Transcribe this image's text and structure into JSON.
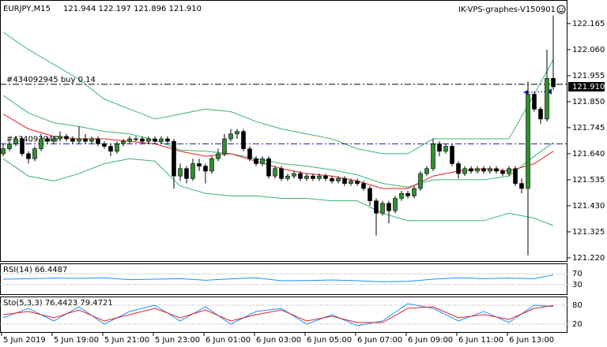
{
  "chart_data": {
    "type": "candlestick",
    "symbol": "EURJPY,M15",
    "quote": "121.944 122.197 121.896 121.910",
    "watermark": "IK-VPS-graphes-V150901",
    "colors": {
      "up": "#2f8f2f",
      "down": "#000000",
      "wick": "#000000"
    },
    "ylim": [
      121.204,
      122.26
    ],
    "yticks": [
      122.165,
      {
        "value": 122.06,
        "label": "122.060"
      },
      121.955,
      {
        "value": 121.85,
        "label": "121.850"
      },
      121.745,
      {
        "value": 121.64,
        "label": "121.640"
      },
      121.535,
      {
        "value": 121.43,
        "label": "121.430"
      },
      121.325,
      {
        "value": 121.22,
        "label": "121.220"
      }
    ],
    "xticks": [
      {
        "value": 0,
        "label": "5 Jun 2019"
      },
      {
        "value": 8,
        "label": "5 Jun 19:00"
      },
      {
        "value": 16,
        "label": "5 Jun 21:00"
      },
      {
        "value": 24,
        "label": "5 Jun 23:00"
      },
      {
        "value": 32,
        "label": "6 Jun 01:00"
      },
      {
        "value": 40,
        "label": "6 Jun 03:00"
      },
      {
        "value": 48,
        "label": "6 Jun 05:00"
      },
      {
        "value": 56,
        "label": "6 Jun 07:00"
      },
      {
        "value": 64,
        "label": "6 Jun 09:00"
      },
      {
        "value": 72,
        "label": "6 Jun 11:00"
      },
      {
        "value": 80,
        "label": "6 Jun 13:00"
      }
    ],
    "last": {
      "value": 121.91,
      "label": "121.910"
    },
    "orders": [
      {
        "label": "#434092945 buy 0.14",
        "price": 121.92,
        "color": "#000000"
      },
      {
        "label": "#434092945",
        "price": 121.68,
        "color": "#1a1aa0"
      }
    ],
    "ohlc": [
      [
        121.64,
        121.68,
        121.63,
        121.66
      ],
      [
        121.66,
        121.69,
        121.65,
        121.68
      ],
      [
        121.68,
        121.71,
        121.67,
        121.7
      ],
      [
        121.7,
        121.71,
        121.63,
        121.64
      ],
      [
        121.64,
        121.65,
        121.6,
        121.62
      ],
      [
        121.62,
        121.67,
        121.61,
        121.66
      ],
      [
        121.66,
        121.72,
        121.65,
        121.7
      ],
      [
        121.7,
        121.71,
        121.68,
        121.69
      ],
      [
        121.69,
        121.71,
        121.68,
        121.7
      ],
      [
        121.7,
        121.73,
        121.69,
        121.71
      ],
      [
        121.71,
        121.72,
        121.69,
        121.7
      ],
      [
        121.7,
        121.71,
        121.68,
        121.69
      ],
      [
        121.69,
        121.75,
        121.68,
        121.7
      ],
      [
        121.7,
        121.72,
        121.68,
        121.69
      ],
      [
        121.69,
        121.71,
        121.68,
        121.7
      ],
      [
        121.7,
        121.71,
        121.67,
        121.68
      ],
      [
        121.68,
        121.69,
        121.66,
        121.67
      ],
      [
        121.67,
        121.68,
        121.63,
        121.65
      ],
      [
        121.65,
        121.69,
        121.64,
        121.68
      ],
      [
        121.68,
        121.7,
        121.67,
        121.69
      ],
      [
        121.69,
        121.71,
        121.68,
        121.7
      ],
      [
        121.7,
        121.71,
        121.69,
        121.7
      ],
      [
        121.7,
        121.71,
        121.68,
        121.69
      ],
      [
        121.69,
        121.71,
        121.68,
        121.7
      ],
      [
        121.7,
        121.71,
        121.68,
        121.69
      ],
      [
        121.69,
        121.71,
        121.68,
        121.7
      ],
      [
        121.7,
        121.71,
        121.68,
        121.69
      ],
      [
        121.69,
        121.7,
        121.5,
        121.55
      ],
      [
        121.55,
        121.6,
        121.53,
        121.58
      ],
      [
        121.58,
        121.59,
        121.52,
        121.54
      ],
      [
        121.54,
        121.62,
        121.53,
        121.6
      ],
      [
        121.6,
        121.62,
        121.57,
        121.59
      ],
      [
        121.59,
        121.6,
        121.52,
        121.57
      ],
      [
        121.57,
        121.63,
        121.56,
        121.62
      ],
      [
        121.62,
        121.66,
        121.61,
        121.64
      ],
      [
        121.64,
        121.72,
        121.63,
        121.7
      ],
      [
        121.7,
        121.74,
        121.69,
        121.72
      ],
      [
        121.72,
        121.74,
        121.7,
        121.73
      ],
      [
        121.73,
        121.74,
        121.65,
        121.66
      ],
      [
        121.66,
        121.67,
        121.61,
        121.62
      ],
      [
        121.62,
        121.63,
        121.59,
        121.6
      ],
      [
        121.6,
        121.63,
        121.59,
        121.62
      ],
      [
        121.62,
        121.63,
        121.54,
        121.55
      ],
      [
        121.55,
        121.59,
        121.54,
        121.58
      ],
      [
        121.58,
        121.59,
        121.53,
        121.54
      ],
      [
        121.54,
        121.56,
        121.53,
        121.55
      ],
      [
        121.55,
        121.57,
        121.54,
        121.56
      ],
      [
        121.56,
        121.57,
        121.53,
        121.54
      ],
      [
        121.54,
        121.56,
        121.53,
        121.55
      ],
      [
        121.55,
        121.56,
        121.53,
        121.54
      ],
      [
        121.54,
        121.56,
        121.53,
        121.55
      ],
      [
        121.55,
        121.56,
        121.53,
        121.54
      ],
      [
        121.54,
        121.55,
        121.52,
        121.53
      ],
      [
        121.53,
        121.55,
        121.52,
        121.54
      ],
      [
        121.54,
        121.55,
        121.51,
        121.52
      ],
      [
        121.52,
        121.54,
        121.51,
        121.53
      ],
      [
        121.53,
        121.54,
        121.51,
        121.52
      ],
      [
        121.52,
        121.53,
        121.49,
        121.5
      ],
      [
        121.5,
        121.51,
        121.43,
        121.45
      ],
      [
        121.45,
        121.46,
        121.31,
        121.4
      ],
      [
        121.4,
        121.45,
        121.39,
        121.44
      ],
      [
        121.44,
        121.45,
        121.36,
        121.41
      ],
      [
        121.41,
        121.47,
        121.4,
        121.46
      ],
      [
        121.46,
        121.49,
        121.45,
        121.48
      ],
      [
        121.48,
        121.49,
        121.46,
        121.47
      ],
      [
        121.47,
        121.51,
        121.46,
        121.5
      ],
      [
        121.5,
        121.57,
        121.49,
        121.56
      ],
      [
        121.56,
        121.59,
        121.55,
        121.58
      ],
      [
        121.58,
        121.7,
        121.57,
        121.68
      ],
      [
        121.68,
        121.69,
        121.63,
        121.65
      ],
      [
        121.65,
        121.68,
        121.64,
        121.67
      ],
      [
        121.67,
        121.68,
        121.59,
        121.6
      ],
      [
        121.6,
        121.61,
        121.54,
        121.56
      ],
      [
        121.56,
        121.59,
        121.55,
        121.58
      ],
      [
        121.58,
        121.59,
        121.56,
        121.57
      ],
      [
        121.57,
        121.59,
        121.56,
        121.58
      ],
      [
        121.58,
        121.59,
        121.56,
        121.57
      ],
      [
        121.57,
        121.59,
        121.56,
        121.58
      ],
      [
        121.58,
        121.59,
        121.56,
        121.57
      ],
      [
        121.57,
        121.58,
        121.55,
        121.56
      ],
      [
        121.56,
        121.59,
        121.55,
        121.58
      ],
      [
        121.58,
        121.59,
        121.51,
        121.52
      ],
      [
        121.52,
        121.54,
        121.48,
        121.5
      ],
      [
        121.5,
        121.93,
        121.23,
        121.88
      ],
      [
        121.88,
        121.89,
        121.81,
        121.82
      ],
      [
        121.82,
        121.83,
        121.76,
        121.78
      ],
      [
        121.78,
        122.06,
        121.77,
        121.944
      ],
      [
        121.944,
        122.197,
        121.896,
        121.91
      ]
    ],
    "overlays": [
      {
        "color": "#3cb371",
        "x": [
          0,
          4,
          8,
          12,
          16,
          20,
          24,
          28,
          32,
          36,
          40,
          44,
          48,
          52,
          56,
          60,
          64,
          68,
          72,
          76,
          80,
          84,
          87
        ],
        "values": [
          122.13,
          122.06,
          122.0,
          121.94,
          121.86,
          121.82,
          121.78,
          121.8,
          121.82,
          121.81,
          121.77,
          121.74,
          121.72,
          121.7,
          121.66,
          121.64,
          121.64,
          121.7,
          121.7,
          121.7,
          121.7,
          121.88,
          122.02
        ]
      },
      {
        "color": "#3cb371",
        "x": [
          0,
          4,
          8,
          12,
          16,
          20,
          24,
          28,
          32,
          36,
          40,
          44,
          48,
          52,
          56,
          60,
          64,
          68,
          72,
          76,
          80,
          84,
          87
        ],
        "values": [
          121.875,
          121.805,
          121.765,
          121.75,
          121.73,
          121.72,
          121.695,
          121.655,
          121.65,
          121.64,
          121.62,
          121.6,
          121.59,
          121.575,
          121.555,
          121.52,
          121.505,
          121.535,
          121.535,
          121.535,
          121.55,
          121.63,
          121.685
        ]
      },
      {
        "color": "#3cb371",
        "x": [
          0,
          4,
          8,
          12,
          16,
          20,
          24,
          28,
          32,
          36,
          40,
          44,
          48,
          52,
          56,
          60,
          64,
          68,
          72,
          76,
          80,
          84,
          87
        ],
        "values": [
          121.62,
          121.55,
          121.53,
          121.56,
          121.6,
          121.62,
          121.61,
          121.51,
          121.48,
          121.47,
          121.47,
          121.46,
          121.46,
          121.45,
          121.45,
          121.4,
          121.37,
          121.37,
          121.37,
          121.37,
          121.4,
          121.38,
          121.35
        ]
      },
      {
        "color": "#e02020",
        "x": [
          0,
          4,
          8,
          12,
          16,
          20,
          24,
          28,
          32,
          36,
          40,
          44,
          48,
          52,
          56,
          60,
          64,
          68,
          72,
          76,
          80,
          84,
          87
        ],
        "values": [
          121.8,
          121.74,
          121.71,
          121.7,
          121.7,
          121.69,
          121.68,
          121.65,
          121.63,
          121.64,
          121.61,
          121.58,
          121.56,
          121.55,
          121.53,
          121.5,
          121.5,
          121.55,
          121.57,
          121.58,
          121.57,
          121.6,
          121.65
        ]
      }
    ],
    "panels": [
      {
        "title": "RSI(14) 66.4487",
        "ylim": [
          0,
          100
        ],
        "yticks": [
          30,
          70
        ],
        "lines": [
          {
            "color": "#1e90ff",
            "x": [
              0,
              4,
              8,
              12,
              16,
              20,
              24,
              28,
              32,
              36,
              40,
              44,
              48,
              52,
              56,
              60,
              64,
              68,
              72,
              76,
              80,
              84,
              87
            ],
            "values": [
              50,
              52,
              54,
              53,
              55,
              48,
              50,
              52,
              46,
              51,
              55,
              44,
              45,
              47,
              44,
              40,
              42,
              50,
              55,
              52,
              54,
              52,
              66
            ]
          }
        ]
      },
      {
        "title": "Sto(5,3,3) 76.4423 79.4721",
        "ylim": [
          0,
          100
        ],
        "yticks": [
          20,
          80
        ],
        "lines": [
          {
            "color": "#1e90ff",
            "x": [
              0,
              4,
              8,
              12,
              16,
              20,
              24,
              28,
              32,
              36,
              40,
              44,
              48,
              52,
              56,
              60,
              64,
              68,
              72,
              76,
              80,
              84,
              87
            ],
            "values": [
              40,
              70,
              30,
              75,
              20,
              60,
              80,
              30,
              75,
              20,
              60,
              70,
              20,
              50,
              15,
              30,
              85,
              70,
              30,
              60,
              25,
              80,
              76
            ]
          },
          {
            "color": "#e02020",
            "x": [
              0,
              4,
              8,
              12,
              16,
              20,
              24,
              28,
              32,
              36,
              40,
              44,
              48,
              52,
              56,
              60,
              64,
              68,
              72,
              76,
              80,
              84,
              87
            ],
            "values": [
              50,
              60,
              40,
              65,
              30,
              50,
              70,
              40,
              65,
              30,
              50,
              65,
              30,
              45,
              25,
              25,
              70,
              75,
              40,
              50,
              35,
              70,
              79
            ]
          }
        ]
      }
    ]
  }
}
